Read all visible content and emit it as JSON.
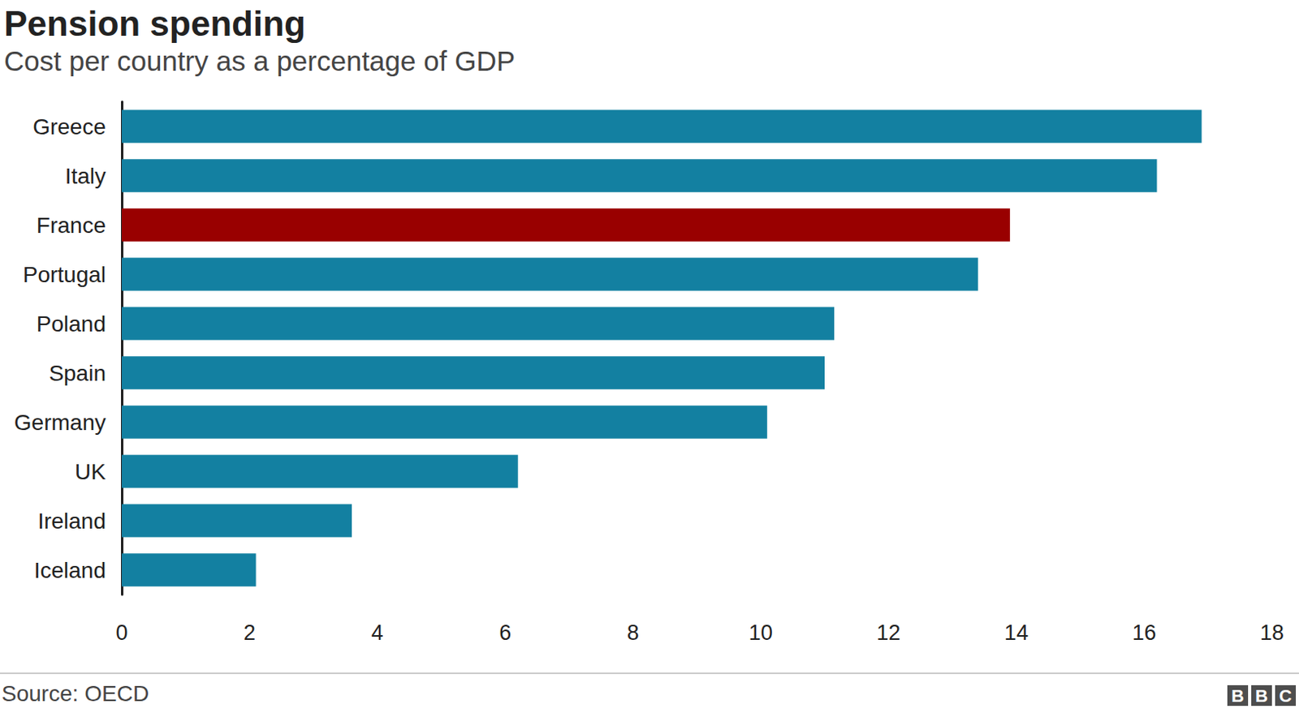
{
  "chart_data": {
    "type": "bar",
    "orientation": "horizontal",
    "title": "Pension spending",
    "subtitle": "Cost per country as a percentage of GDP",
    "source": "Source: OECD",
    "logo": "BBC",
    "categories": [
      "Greece",
      "Italy",
      "France",
      "Portugal",
      "Poland",
      "Spain",
      "Germany",
      "UK",
      "Ireland",
      "Iceland"
    ],
    "values": [
      16.9,
      16.2,
      13.9,
      13.4,
      11.15,
      11.0,
      10.1,
      6.2,
      3.6,
      2.1
    ],
    "colors": [
      "#1380a1",
      "#1380a1",
      "#990000",
      "#1380a1",
      "#1380a1",
      "#1380a1",
      "#1380a1",
      "#1380a1",
      "#1380a1",
      "#1380a1"
    ],
    "xlim": [
      0,
      18
    ],
    "xticks": [
      0,
      2,
      4,
      6,
      8,
      10,
      12,
      14,
      16,
      18
    ],
    "grid": false
  }
}
